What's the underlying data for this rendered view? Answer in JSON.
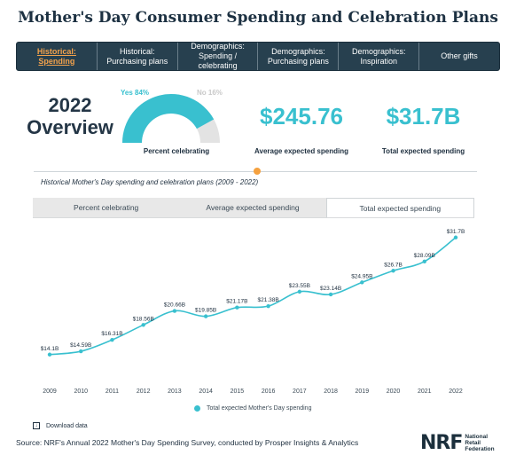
{
  "page": {
    "title": "Mother's Day Consumer Spending and Celebration Plans"
  },
  "tabs": [
    {
      "label": "Historical:\nSpending",
      "active": true
    },
    {
      "label": "Historical:\nPurchasing plans",
      "active": false
    },
    {
      "label": "Demographics:\nSpending / celebrating",
      "active": false
    },
    {
      "label": "Demographics:\nPurchasing plans",
      "active": false
    },
    {
      "label": "Demographics:\nInspiration",
      "active": false
    },
    {
      "label": "Other gifts",
      "active": false
    }
  ],
  "overview": {
    "title": "2022\nOverview",
    "gauge": {
      "yes_label": "Yes 84%",
      "no_label": "No 16%",
      "yes_fraction": 0.84,
      "caption": "Percent celebrating"
    },
    "avg_spending": {
      "value": "$245.76",
      "label": "Average expected spending"
    },
    "total_spending": {
      "value": "$31.7B",
      "label": "Total expected spending"
    }
  },
  "subtitle": "Historical Mother's Day spending and celebration plans (2009 - 2022)",
  "chart_tabs": [
    {
      "label": "Percent celebrating",
      "active": false
    },
    {
      "label": "Average expected spending",
      "active": false
    },
    {
      "label": "Total expected spending",
      "active": true
    }
  ],
  "chart_data": {
    "type": "line",
    "x": [
      2009,
      2010,
      2011,
      2012,
      2013,
      2014,
      2015,
      2016,
      2017,
      2018,
      2019,
      2020,
      2021,
      2022
    ],
    "series": [
      {
        "name": "Total expected Mother's Day spending",
        "values": [
          14.1,
          14.59,
          16.31,
          18.56,
          20.66,
          19.85,
          21.17,
          21.38,
          23.55,
          23.14,
          24.95,
          26.7,
          28.09,
          31.7
        ],
        "labels": [
          "$14.1B",
          "$14.59B",
          "$16.31B",
          "$18.56B",
          "$20.66B",
          "$19.85B",
          "$21.17B",
          "$21.38B",
          "$23.55B",
          "$23.14B",
          "$24.95B",
          "$26.7B",
          "$28.09B",
          "$31.7B"
        ]
      }
    ],
    "ylim": [
      11,
      33
    ],
    "grid": false,
    "legend": "bottom",
    "color": "#39c0cf"
  },
  "download_label": "Download data",
  "source": "Source: NRF's Annual 2022 Mother's Day Spending Survey, conducted by Prosper Insights & Analytics",
  "logo": {
    "mark": "NRF",
    "text": "National\nRetail\nFederation"
  },
  "colors": {
    "accent": "#39c0cf",
    "nav_bg": "#27404f",
    "active_tab": "#f3a24c",
    "gauge_rest": "#e3e3e3"
  }
}
